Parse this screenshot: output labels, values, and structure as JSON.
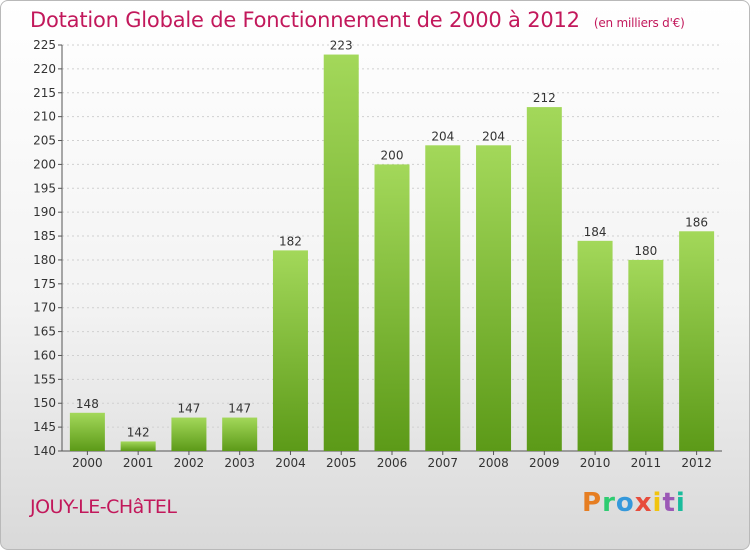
{
  "header": {
    "title": "Dotation Globale de Fonctionnement de 2000 à 2012",
    "unit": "(en milliers d'€)"
  },
  "footer": {
    "commune": "JOUY-LE-CHâTEL",
    "logo_text": "Proxiti",
    "logo_colors": [
      "#e67e22",
      "#2ecc71",
      "#3498db",
      "#e74c3c",
      "#f1c40f",
      "#9b59b6",
      "#1abc9c"
    ]
  },
  "colors": {
    "accent": "#c2185b",
    "bar_light": "#9fd356",
    "bar_dark": "#5e9b1a"
  },
  "chart_data": {
    "type": "bar",
    "title": "Dotation Globale de Fonctionnement de 2000 à 2012",
    "subtitle": "(en milliers d'€)",
    "categories": [
      "2000",
      "2001",
      "2002",
      "2003",
      "2004",
      "2005",
      "2006",
      "2007",
      "2008",
      "2009",
      "2010",
      "2011",
      "2012"
    ],
    "values": [
      148,
      142,
      147,
      147,
      182,
      223,
      200,
      204,
      204,
      212,
      184,
      180,
      186
    ],
    "data_labels": [
      "148",
      "142",
      "147",
      "147",
      "182",
      "223",
      "200",
      "204",
      "204",
      "212",
      "184",
      "180",
      "186"
    ],
    "ylim": [
      140,
      225
    ],
    "yticks": [
      "140",
      "145",
      "150",
      "155",
      "160",
      "165",
      "170",
      "175",
      "180",
      "185",
      "190",
      "195",
      "200",
      "205",
      "210",
      "215",
      "220",
      "225"
    ],
    "grid": true,
    "xlabel": "",
    "ylabel": ""
  }
}
